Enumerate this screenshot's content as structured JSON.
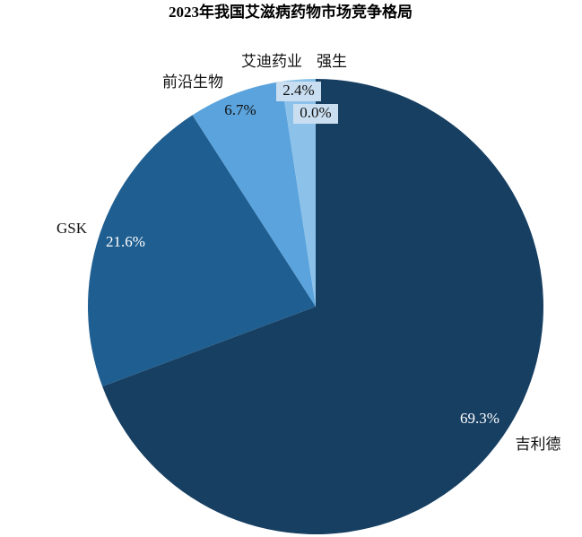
{
  "chart_data": {
    "type": "pie",
    "title": "2023年我国艾滋病药物市场竞争格局",
    "categories": [
      "吉利德",
      "GSK",
      "前沿生物",
      "艾迪药业",
      "强生"
    ],
    "values": [
      69.3,
      21.6,
      6.7,
      2.4,
      0.0
    ],
    "value_labels": [
      "69.3%",
      "21.6%",
      "6.7%",
      "2.4%",
      "0.0%"
    ],
    "colors": [
      "#173f62",
      "#1f5e90",
      "#5aa3dd",
      "#8cc2ea",
      "#b7d7f1"
    ]
  }
}
